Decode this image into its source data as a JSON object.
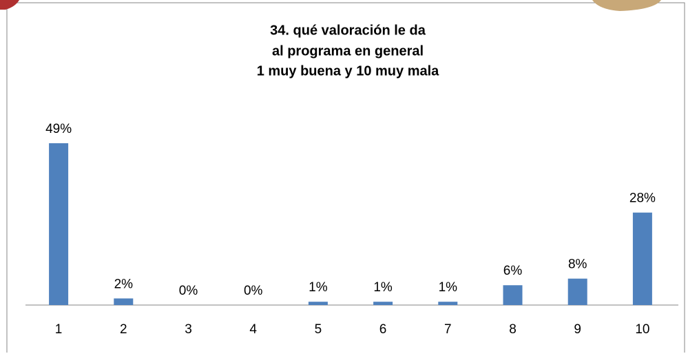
{
  "chart_data": {
    "type": "bar",
    "title": [
      "34. qué valoración le da",
      "al programa en general",
      "1 muy buena y 10 muy mala"
    ],
    "categories": [
      "1",
      "2",
      "3",
      "4",
      "5",
      "6",
      "7",
      "8",
      "9",
      "10"
    ],
    "values": [
      49,
      2,
      0,
      0,
      1,
      1,
      1,
      6,
      8,
      28
    ],
    "value_labels": [
      "49%",
      "2%",
      "0%",
      "0%",
      "1%",
      "1%",
      "1%",
      "6%",
      "8%",
      "28%"
    ],
    "color": "#4f81bd"
  }
}
